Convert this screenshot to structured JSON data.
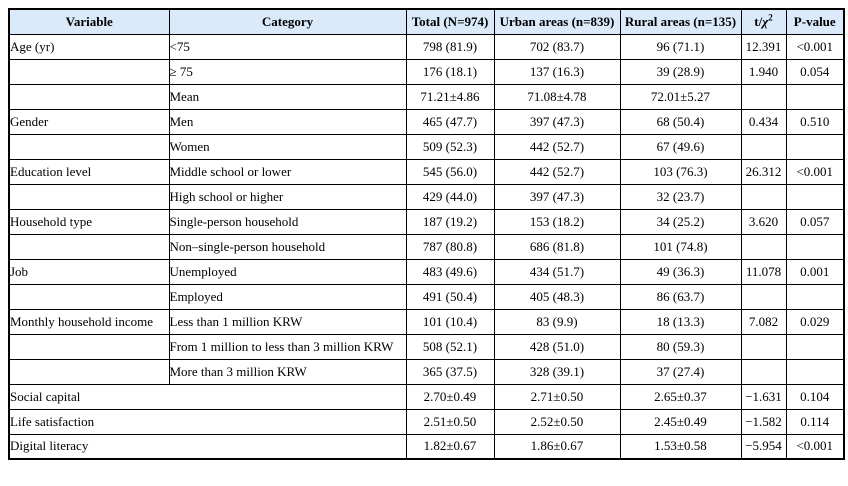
{
  "colors": {
    "header_bg": "#daeafb",
    "border": "#000000",
    "text": "#000000"
  },
  "table": {
    "header": {
      "variable": "Variable",
      "category": "Category",
      "total": "Total (N=974)",
      "urban": "Urban areas (n=839)",
      "rural": "Rural areas (n=135)",
      "stat_prefix": "t/",
      "stat_chi": "χ",
      "stat_sup": "2",
      "pvalue": "P-value"
    },
    "rows": [
      {
        "variable": "Age (yr)",
        "category": "<75",
        "total": "798 (81.9)",
        "urban": "702 (83.7)",
        "rural": "96 (71.1)",
        "stat": "12.391",
        "p": "<0.001",
        "span": false
      },
      {
        "variable": "",
        "category": "≥ 75",
        "total": "176 (18.1)",
        "urban": "137 (16.3)",
        "rural": "39 (28.9)",
        "stat": "1.940",
        "p": "0.054",
        "span": false
      },
      {
        "variable": "",
        "category": "Mean",
        "total": "71.21±4.86",
        "urban": "71.08±4.78",
        "rural": "72.01±5.27",
        "stat": "",
        "p": "",
        "span": false
      },
      {
        "variable": "Gender",
        "category": "Men",
        "total": "465 (47.7)",
        "urban": "397 (47.3)",
        "rural": "68 (50.4)",
        "stat": "0.434",
        "p": "0.510",
        "span": false
      },
      {
        "variable": "",
        "category": "Women",
        "total": "509 (52.3)",
        "urban": "442 (52.7)",
        "rural": "67 (49.6)",
        "stat": "",
        "p": "",
        "span": false
      },
      {
        "variable": "Education level",
        "category": "Middle school or lower",
        "total": "545 (56.0)",
        "urban": "442 (52.7)",
        "rural": "103 (76.3)",
        "stat": "26.312",
        "p": "<0.001",
        "span": false
      },
      {
        "variable": "",
        "category": "High school or higher",
        "total": "429 (44.0)",
        "urban": "397 (47.3)",
        "rural": "32 (23.7)",
        "stat": "",
        "p": "",
        "span": false
      },
      {
        "variable": "Household type",
        "category": "Single-person household",
        "total": "187 (19.2)",
        "urban": "153 (18.2)",
        "rural": "34 (25.2)",
        "stat": "3.620",
        "p": "0.057",
        "span": false
      },
      {
        "variable": "",
        "category": "Non–single-person household",
        "total": "787 (80.8)",
        "urban": "686 (81.8)",
        "rural": "101 (74.8)",
        "stat": "",
        "p": "",
        "span": false
      },
      {
        "variable": "Job",
        "category": "Unemployed",
        "total": "483 (49.6)",
        "urban": "434 (51.7)",
        "rural": "49 (36.3)",
        "stat": "11.078",
        "p": "0.001",
        "span": false
      },
      {
        "variable": "",
        "category": "Employed",
        "total": "491 (50.4)",
        "urban": "405 (48.3)",
        "rural": "86 (63.7)",
        "stat": "",
        "p": "",
        "span": false
      },
      {
        "variable": "Monthly household income",
        "category": "Less than 1 million KRW",
        "total": "101 (10.4)",
        "urban": "83 (9.9)",
        "rural": "18 (13.3)",
        "stat": "7.082",
        "p": "0.029",
        "span": false
      },
      {
        "variable": "",
        "category": "From 1 million to less than 3 million KRW",
        "total": "508 (52.1)",
        "urban": "428 (51.0)",
        "rural": "80 (59.3)",
        "stat": "",
        "p": "",
        "span": false
      },
      {
        "variable": "",
        "category": "More than 3 million KRW",
        "total": "365 (37.5)",
        "urban": "328 (39.1)",
        "rural": "37 (27.4)",
        "stat": "",
        "p": "",
        "span": false
      },
      {
        "variable": "Social capital",
        "category": null,
        "total": "2.70±0.49",
        "urban": "2.71±0.50",
        "rural": "2.65±0.37",
        "stat": "−1.631",
        "p": "0.104",
        "span": true
      },
      {
        "variable": "Life satisfaction",
        "category": null,
        "total": "2.51±0.50",
        "urban": "2.52±0.50",
        "rural": "2.45±0.49",
        "stat": "−1.582",
        "p": "0.114",
        "span": true
      },
      {
        "variable": "Digital literacy",
        "category": null,
        "total": "1.82±0.67",
        "urban": "1.86±0.67",
        "rural": "1.53±0.58",
        "stat": "−5.954",
        "p": "<0.001",
        "span": true
      }
    ]
  }
}
